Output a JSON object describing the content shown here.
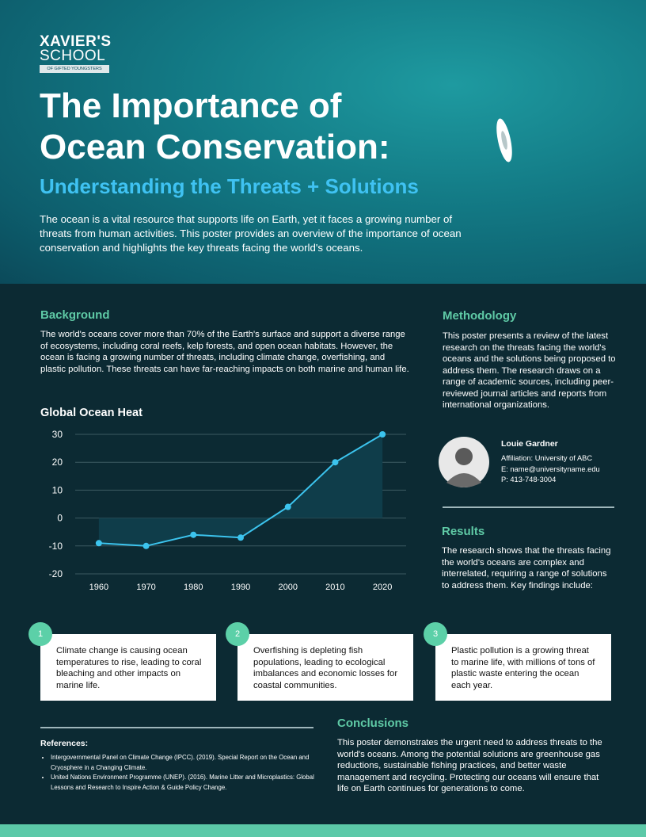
{
  "logo": {
    "line1": "XAVIER'S",
    "line2": "SCHOOL",
    "tagline": "OF GIFTED YOUNGSTERS"
  },
  "header": {
    "title": [
      "The Importance of",
      "Ocean Conservation:"
    ],
    "subtitle": "Understanding the Threats + Solutions",
    "intro": "The ocean is a vital resource that supports life on Earth, yet it faces a growing number of threats from human activities. This poster provides an overview of the importance of ocean conservation and highlights the key threats facing the world's oceans."
  },
  "background": {
    "heading": "Background",
    "text": "The world's oceans cover more than 70% of the Earth's surface and support a diverse range of ecosystems, including coral reefs, kelp forests, and open ocean habitats. However, the ocean is facing a growing number of threats, including climate change, overfishing, and plastic pollution. These threats can have far-reaching impacts on both marine and human life."
  },
  "chart_data": {
    "type": "line",
    "title": "Global Ocean Heat",
    "x": [
      1960,
      1970,
      1980,
      1990,
      2000,
      2010,
      2020
    ],
    "series": [
      {
        "color": "#3cc4ee",
        "values": [
          -9,
          -10,
          -6,
          -7,
          4,
          20,
          30
        ]
      }
    ],
    "xlim": [
      1955,
      2025
    ],
    "xticks": [
      1960,
      1970,
      1980,
      1990,
      2000,
      2010,
      2020
    ],
    "ylim": [
      -20,
      30
    ],
    "yticks": [
      -20,
      -10,
      0,
      10,
      20,
      30
    ],
    "grid": true,
    "area": true
  },
  "methodology": {
    "heading": "Methodology",
    "text": "This poster presents a review of the latest research on the threats facing the world's oceans and the solutions being proposed to address them. The research draws on a range of academic sources, including peer-reviewed journal articles and reports from international organizations."
  },
  "author": {
    "name": "Louie Gardner",
    "affiliation": "Affiliation: University of ABC",
    "email": "E: name@universityname.edu",
    "phone": "P: 413-748-3004"
  },
  "results": {
    "heading": "Results",
    "text": "The research shows that the threats facing the world's oceans are complex and interrelated, requiring a range of solutions to address them. Key findings include:"
  },
  "findings": [
    {
      "number": "1",
      "text": "Climate change is causing ocean temperatures to rise, leading to coral bleaching and other impacts on marine life."
    },
    {
      "number": "2",
      "text": "Overfishing is depleting fish populations, leading to ecological imbalances and economic losses for coastal communities."
    },
    {
      "number": "3",
      "text": "Plastic pollution is a growing threat to marine life, with millions of tons of plastic waste entering the ocean each year."
    }
  ],
  "references": {
    "heading": "References:",
    "items": [
      "Intergovernmental Panel on Climate Change (IPCC). (2019). Special Report on the Ocean and Cryosphere in a Changing Climate.",
      "United Nations Environment Programme (UNEP). (2016). Marine Litter and Microplastics: Global Lessons and Research to Inspire Action & Guide Policy Change."
    ]
  },
  "conclusions": {
    "heading": "Conclusions",
    "text": "This poster demonstrates the urgent need to address threats to the world's oceans. Among the potential solutions are greenhouse gas reductions, sustainable fishing practices, and better waste management and recycling. Protecting our oceans will ensure that life on Earth continues for generations to come."
  }
}
